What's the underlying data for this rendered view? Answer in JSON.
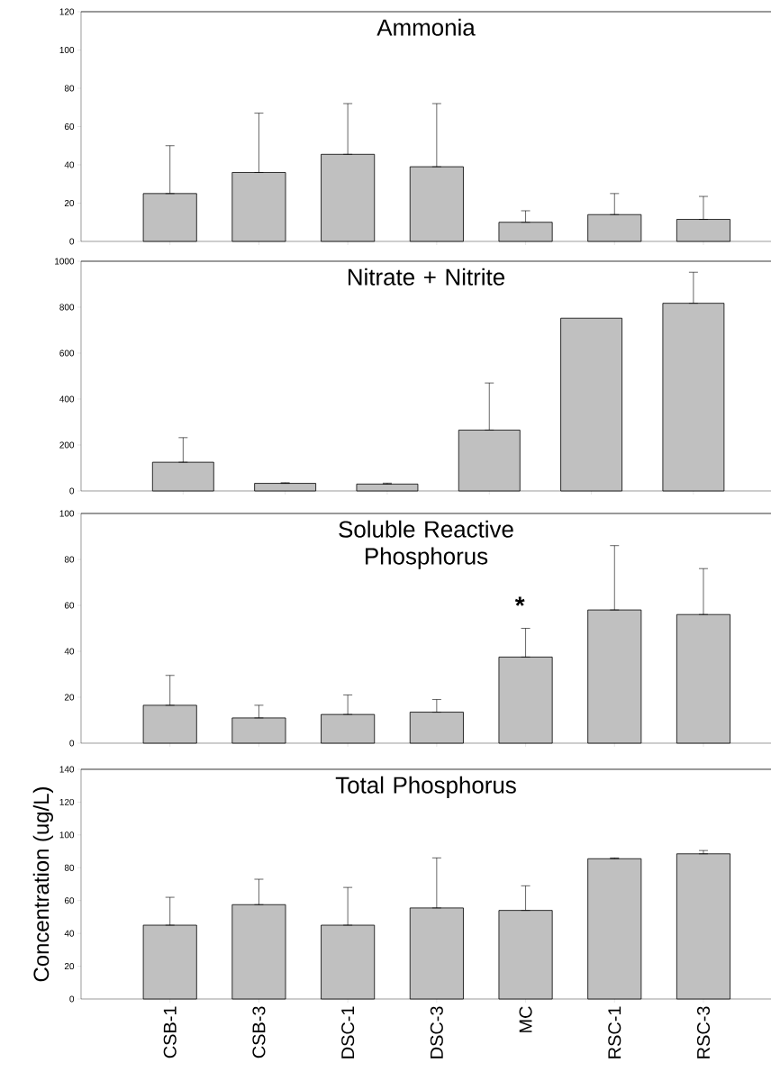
{
  "chart_data": [
    {
      "type": "bar",
      "title": "Ammonia",
      "categories": [
        null,
        null,
        null,
        null,
        null,
        null,
        null
      ],
      "values": [
        25,
        36,
        45.5,
        39,
        10,
        14,
        11.5
      ],
      "errors": [
        [
          25,
          50
        ],
        [
          36,
          67
        ],
        [
          45.5,
          72
        ],
        [
          39,
          72
        ],
        [
          10,
          16
        ],
        [
          14,
          25
        ],
        [
          11.5,
          23.5
        ]
      ],
      "color": "#c0c0c0",
      "ylim": [
        0,
        120
      ],
      "yticks": [
        0,
        20,
        40,
        60,
        80,
        100,
        120
      ],
      "tick_labels": "y"
    },
    {
      "type": "bar",
      "title": "Nitrate + Nitrite",
      "categories": [
        null,
        null,
        null,
        null,
        null,
        null
      ],
      "values": [
        125,
        33,
        30,
        265,
        752,
        817
      ],
      "errors": [
        [
          125,
          232
        ],
        [
          33,
          36
        ],
        [
          30,
          34
        ],
        [
          265,
          470
        ],
        null,
        [
          817,
          952
        ]
      ],
      "color": "#c0c0c0",
      "ylim": [
        0,
        1000
      ],
      "yticks": [
        0,
        200,
        400,
        600,
        800,
        1000
      ],
      "tick_labels": "y"
    },
    {
      "type": "bar",
      "title": "Soluble Reactive Phosphorus",
      "categories": [
        null,
        null,
        null,
        null,
        null,
        null,
        null
      ],
      "values": [
        16.5,
        11,
        12.5,
        13.5,
        37.5,
        58,
        56
      ],
      "errors": [
        [
          16.5,
          29.5
        ],
        [
          11,
          16.5
        ],
        [
          12.5,
          21
        ],
        [
          13.5,
          19
        ],
        [
          37.5,
          50
        ],
        [
          58,
          86
        ],
        [
          56,
          76
        ]
      ],
      "color": "#c0c0c0",
      "ylim": [
        0,
        100
      ],
      "yticks": [
        0,
        20,
        40,
        60,
        80,
        100
      ],
      "tick_labels": "y",
      "annotations": [
        "*"
      ]
    },
    {
      "type": "bar",
      "title": "Total Phosphorus",
      "ylabel": "Concentration (ug/L)",
      "categories": [
        "CSB-1",
        "CSB-3",
        "DSC-1",
        "DSC-3",
        "MC",
        "RSC-1",
        "RSC-3"
      ],
      "values": [
        45,
        57.5,
        45,
        55.5,
        54,
        85.5,
        88.5
      ],
      "errors": [
        [
          45,
          62
        ],
        [
          57.5,
          73
        ],
        [
          45,
          68
        ],
        [
          55.5,
          86
        ],
        [
          54,
          69
        ],
        [
          85.5,
          86
        ],
        [
          88.5,
          90.5
        ]
      ],
      "color": "#c0c0c0",
      "ylim": [
        0,
        140
      ],
      "yticks": [
        0,
        20,
        40,
        60,
        80,
        100,
        120,
        140
      ]
    }
  ]
}
